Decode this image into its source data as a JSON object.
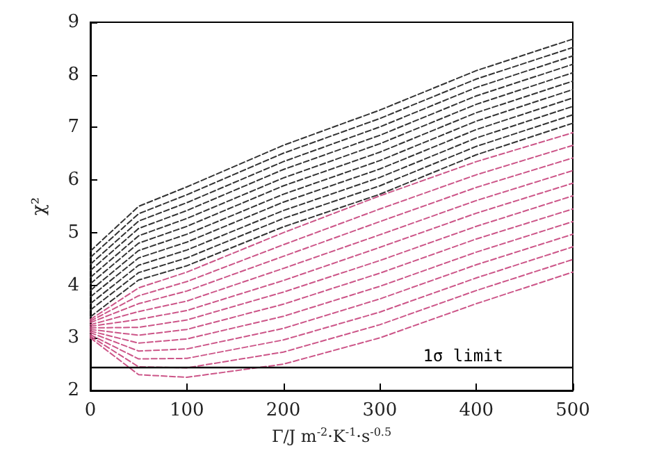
{
  "chart_data": {
    "type": "line",
    "xlabel": "Γ/J m$^{-2}$·K$^{-1}$·s$^{-0.5}$",
    "ylabel": "χ²",
    "x": [
      0,
      50,
      100,
      200,
      300,
      400,
      500
    ],
    "xlim": [
      0,
      500
    ],
    "xticks": [
      0,
      100,
      200,
      300,
      400,
      500
    ],
    "ylim": [
      2,
      9
    ],
    "yticks": [
      2,
      3,
      4,
      5,
      6,
      7,
      8,
      9
    ],
    "grid": false,
    "marker": "none",
    "line_style": "dashed",
    "ref_lines": [
      {
        "axis": "y",
        "value": 2.45,
        "label": "1σ limit",
        "color": "#000000"
      }
    ],
    "series": [
      {
        "color": "#333333",
        "values": [
          4.65,
          5.5,
          5.87,
          6.66,
          7.33,
          8.08,
          8.68
        ]
      },
      {
        "color": "#333333",
        "values": [
          4.53,
          5.36,
          5.72,
          6.51,
          7.17,
          7.92,
          8.52
        ]
      },
      {
        "color": "#333333",
        "values": [
          4.4,
          5.22,
          5.57,
          6.35,
          7.01,
          7.76,
          8.36
        ]
      },
      {
        "color": "#333333",
        "values": [
          4.28,
          5.08,
          5.42,
          6.2,
          6.85,
          7.6,
          8.2
        ]
      },
      {
        "color": "#333333",
        "values": [
          4.15,
          4.94,
          5.27,
          6.04,
          6.69,
          7.44,
          8.04
        ]
      },
      {
        "color": "#333333",
        "values": [
          4.03,
          4.8,
          5.12,
          5.89,
          6.53,
          7.28,
          7.88
        ]
      },
      {
        "color": "#333333",
        "values": [
          3.9,
          4.66,
          4.97,
          5.73,
          6.37,
          7.12,
          7.72
        ]
      },
      {
        "color": "#333333",
        "values": [
          3.78,
          4.52,
          4.82,
          5.58,
          6.21,
          6.96,
          7.56
        ]
      },
      {
        "color": "#333333",
        "values": [
          3.65,
          4.38,
          4.67,
          5.42,
          6.05,
          6.8,
          7.4
        ]
      },
      {
        "color": "#333333",
        "values": [
          3.53,
          4.24,
          4.52,
          5.27,
          5.89,
          6.64,
          7.24
        ]
      },
      {
        "color": "#333333",
        "values": [
          3.4,
          4.1,
          4.37,
          5.11,
          5.73,
          6.48,
          7.08
        ]
      },
      {
        "color": "#cc5588",
        "values": [
          3.35,
          3.95,
          4.25,
          5.0,
          5.7,
          6.35,
          6.9
        ]
      },
      {
        "color": "#cc5588",
        "values": [
          3.32,
          3.8,
          4.07,
          4.77,
          5.45,
          6.1,
          6.66
        ]
      },
      {
        "color": "#cc5588",
        "values": [
          3.29,
          3.65,
          3.89,
          4.55,
          5.21,
          5.86,
          6.42
        ]
      },
      {
        "color": "#cc5588",
        "values": [
          3.25,
          3.5,
          3.7,
          4.32,
          4.96,
          5.61,
          6.18
        ]
      },
      {
        "color": "#cc5588",
        "values": [
          3.22,
          3.35,
          3.52,
          4.09,
          4.72,
          5.37,
          5.94
        ]
      },
      {
        "color": "#cc5588",
        "values": [
          3.19,
          3.2,
          3.34,
          3.87,
          4.47,
          5.12,
          5.7
        ]
      },
      {
        "color": "#cc5588",
        "values": [
          3.16,
          3.05,
          3.16,
          3.64,
          4.23,
          4.88,
          5.45
        ]
      },
      {
        "color": "#cc5588",
        "values": [
          3.13,
          2.9,
          2.98,
          3.41,
          3.98,
          4.63,
          5.21
        ]
      },
      {
        "color": "#cc5588",
        "values": [
          3.1,
          2.75,
          2.79,
          3.18,
          3.74,
          4.39,
          4.97
        ]
      },
      {
        "color": "#cc5588",
        "values": [
          3.06,
          2.6,
          2.61,
          2.96,
          3.49,
          4.14,
          4.73
        ]
      },
      {
        "color": "#cc5588",
        "values": [
          3.03,
          2.45,
          2.43,
          2.73,
          3.25,
          3.9,
          4.49
        ]
      },
      {
        "color": "#cc5588",
        "values": [
          3.0,
          2.3,
          2.25,
          2.5,
          3.0,
          3.65,
          4.25
        ]
      }
    ]
  }
}
